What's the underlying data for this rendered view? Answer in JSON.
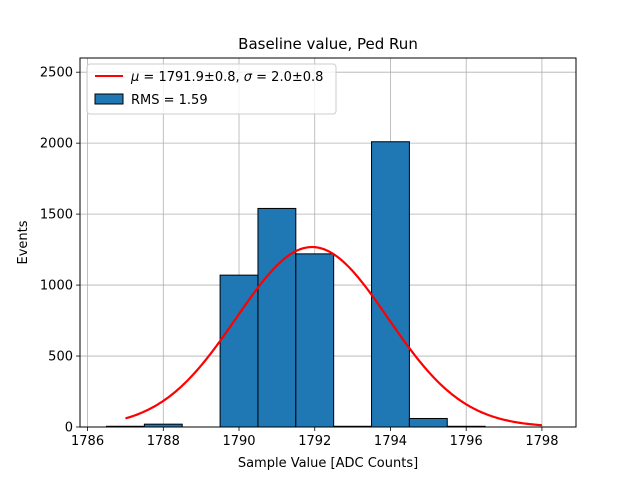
{
  "chart_data": {
    "type": "bar",
    "title": "Baseline value, Ped Run",
    "xlabel": "Sample Value [ADC Counts]",
    "ylabel": "Events",
    "xlim": [
      1785.8,
      1798.9
    ],
    "ylim": [
      0,
      2600
    ],
    "xticks": [
      1786,
      1788,
      1790,
      1792,
      1794,
      1796,
      1798
    ],
    "yticks": [
      0,
      500,
      1000,
      1500,
      2000,
      2500
    ],
    "grid": true,
    "legend_position": "upper-left",
    "histogram": {
      "name": "RMS = 1.59",
      "color": "#1f77b4",
      "edgecolor": "#000000",
      "bins": [
        {
          "x0": 1786.5,
          "x1": 1787.5,
          "count": 5
        },
        {
          "x0": 1787.5,
          "x1": 1788.5,
          "count": 20
        },
        {
          "x0": 1788.5,
          "x1": 1789.5,
          "count": 0
        },
        {
          "x0": 1789.5,
          "x1": 1790.5,
          "count": 1070
        },
        {
          "x0": 1790.5,
          "x1": 1791.5,
          "count": 1540
        },
        {
          "x0": 1791.5,
          "x1": 1792.5,
          "count": 1220
        },
        {
          "x0": 1792.5,
          "x1": 1793.5,
          "count": 5
        },
        {
          "x0": 1793.5,
          "x1": 1794.5,
          "count": 2010
        },
        {
          "x0": 1794.5,
          "x1": 1795.5,
          "count": 60
        },
        {
          "x0": 1795.5,
          "x1": 1796.5,
          "count": 5
        }
      ]
    },
    "fit": {
      "name": "$\\mu = 1791.9 \\pm 0.8, \\sigma = 2.0 \\pm 0.8$",
      "legend_label": {
        "mu_symbol": "μ",
        "mu_text": " = 1791.9±0.8, ",
        "sigma_symbol": "σ",
        "sigma_text": " = 2.0±0.8"
      },
      "color": "#ff0000",
      "mu": 1791.93,
      "sigma": 2.0,
      "amplitude": 1268,
      "x_range": [
        1787.0,
        1798.0
      ]
    }
  }
}
